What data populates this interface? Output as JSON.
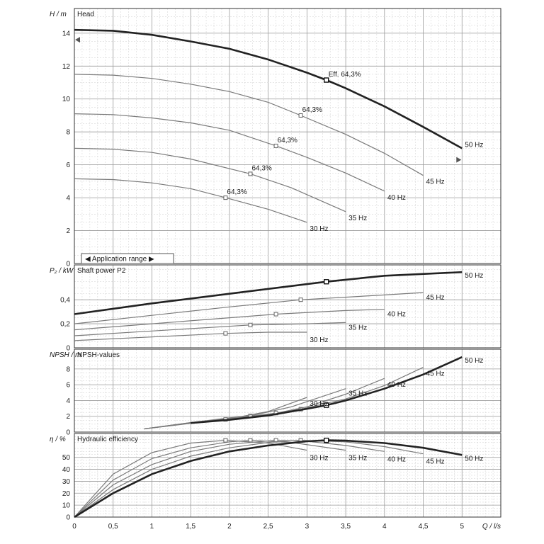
{
  "chart_data": {
    "type": "line",
    "x_axis": {
      "label": "Q / l/s",
      "range": [
        0,
        5.5
      ],
      "ticks": [
        0,
        0.5,
        1,
        1.5,
        2,
        2.5,
        3,
        3.5,
        4,
        4.5,
        5
      ],
      "tick_labels": [
        "0",
        "0,5",
        "1",
        "1,5",
        "2",
        "2,5",
        "3",
        "3,5",
        "4",
        "4,5",
        "5"
      ]
    },
    "application_range_label": "◀ Application range ▶",
    "panels": [
      {
        "id": "head",
        "title": "Head",
        "ylabel": "H / m",
        "ylim": [
          0,
          15.5
        ],
        "yticks": [
          0,
          2,
          4,
          6,
          8,
          10,
          12,
          14
        ],
        "ytick_labels": [
          "0",
          "2",
          "4",
          "6",
          "8",
          "10",
          "12",
          "14"
        ],
        "annotation": "Eff.  64,3%",
        "series": [
          {
            "name": "50 Hz",
            "bold": true,
            "x": [
              0,
              0.5,
              1,
              1.5,
              2,
              2.5,
              3,
              3.25,
              3.5,
              4,
              4.5,
              5.0
            ],
            "y": [
              14.2,
              14.15,
              13.9,
              13.5,
              13.05,
              12.4,
              11.6,
              11.15,
              10.65,
              9.55,
              8.3,
              7.0
            ],
            "op_point": [
              3.25,
              11.15
            ]
          },
          {
            "name": "45 Hz",
            "bold": false,
            "x": [
              0,
              0.5,
              1,
              1.5,
              2,
              2.5,
              2.92,
              3.5,
              4,
              4.5
            ],
            "y": [
              11.5,
              11.45,
              11.25,
              10.9,
              10.45,
              9.8,
              9.0,
              7.85,
              6.7,
              5.35
            ],
            "op_point": [
              2.92,
              9.0
            ],
            "point_label": "64,3%"
          },
          {
            "name": "40 Hz",
            "bold": false,
            "x": [
              0,
              0.5,
              1,
              1.5,
              2,
              2.6,
              3,
              3.5,
              4
            ],
            "y": [
              9.1,
              9.05,
              8.85,
              8.55,
              8.1,
              7.15,
              6.45,
              5.5,
              4.4
            ],
            "op_point": [
              2.6,
              7.15
            ],
            "point_label": "64,3%"
          },
          {
            "name": "35 Hz",
            "bold": false,
            "x": [
              0,
              0.5,
              1,
              1.5,
              2.27,
              2.8,
              3.5
            ],
            "y": [
              7.0,
              6.95,
              6.75,
              6.35,
              5.45,
              4.6,
              3.15
            ],
            "op_point": [
              2.27,
              5.45
            ],
            "point_label": "64,3%"
          },
          {
            "name": "30 Hz",
            "bold": false,
            "x": [
              0,
              0.5,
              1,
              1.5,
              1.95,
              2.5,
              3.0
            ],
            "y": [
              5.15,
              5.1,
              4.9,
              4.55,
              4.0,
              3.3,
              2.5
            ],
            "op_point": [
              1.95,
              4.0
            ],
            "point_label": "64,3%"
          }
        ]
      },
      {
        "id": "power",
        "title": "Shaft power P2",
        "ylabel": "P₂ / kW",
        "ylim": [
          0,
          0.69
        ],
        "yticks": [
          0,
          0.2,
          0.4
        ],
        "ytick_labels": [
          "0",
          "0,2",
          "0,4"
        ],
        "series": [
          {
            "name": "50 Hz",
            "bold": true,
            "x": [
              0,
              1,
              2,
              3.25,
              4,
              5.0
            ],
            "y": [
              0.28,
              0.37,
              0.45,
              0.55,
              0.6,
              0.63
            ],
            "op_point": [
              3.25,
              0.55
            ]
          },
          {
            "name": "45 Hz",
            "bold": false,
            "x": [
              0,
              1,
              2,
              2.92,
              4,
              4.5
            ],
            "y": [
              0.2,
              0.27,
              0.34,
              0.4,
              0.44,
              0.46
            ],
            "op_point": [
              2.92,
              0.4
            ]
          },
          {
            "name": "40 Hz",
            "bold": false,
            "x": [
              0,
              1,
              2,
              2.6,
              3.5,
              4.0
            ],
            "y": [
              0.15,
              0.2,
              0.25,
              0.28,
              0.31,
              0.32
            ],
            "op_point": [
              2.6,
              0.28
            ]
          },
          {
            "name": "35 Hz",
            "bold": false,
            "x": [
              0,
              1,
              2.27,
              3,
              3.5
            ],
            "y": [
              0.1,
              0.14,
              0.19,
              0.2,
              0.21
            ],
            "op_point": [
              2.27,
              0.19
            ]
          },
          {
            "name": "30 Hz",
            "bold": false,
            "x": [
              0,
              1,
              1.95,
              2.5,
              3.0
            ],
            "y": [
              0.06,
              0.09,
              0.12,
              0.13,
              0.13
            ],
            "op_point": [
              1.95,
              0.12
            ]
          }
        ]
      },
      {
        "id": "npsh",
        "title": "NPSH-values",
        "ylabel": "NPSH / m",
        "ylim": [
          0,
          10.5
        ],
        "yticks": [
          0,
          2,
          4,
          6,
          8
        ],
        "ytick_labels": [
          "0",
          "2",
          "4",
          "6",
          "8"
        ],
        "series": [
          {
            "name": "50 Hz",
            "bold": true,
            "x": [
              1.5,
              2,
              2.5,
              3,
              3.25,
              3.5,
              4,
              4.5,
              5.0
            ],
            "y": [
              1.15,
              1.55,
              2.1,
              2.95,
              3.4,
              4.0,
              5.5,
              7.3,
              9.5
            ],
            "op_point": [
              3.25,
              3.4
            ]
          },
          {
            "name": "45 Hz",
            "bold": false,
            "x": [
              0.9,
              1.5,
              2,
              2.5,
              2.92,
              3.5,
              4,
              4.5
            ],
            "y": [
              0.4,
              1.1,
              1.6,
              2.25,
              2.9,
              4.2,
              5.9,
              8.2
            ],
            "op_point": [
              2.92,
              2.9
            ]
          },
          {
            "name": "40 Hz",
            "bold": false,
            "x": [
              0.9,
              1.5,
              2,
              2.6,
              3,
              3.5,
              4.0
            ],
            "y": [
              0.4,
              1.15,
              1.7,
              2.4,
              3.2,
              4.8,
              6.8
            ],
            "op_point": [
              2.6,
              2.4
            ]
          },
          {
            "name": "35 Hz",
            "bold": false,
            "x": [
              0.9,
              1.5,
              2,
              2.27,
              2.8,
              3.5
            ],
            "y": [
              0.4,
              1.2,
              1.8,
              2.05,
              3.2,
              5.5
            ],
            "op_point": [
              2.27,
              2.05
            ]
          },
          {
            "name": "30 Hz",
            "bold": false,
            "x": [
              0.9,
              1.5,
              1.95,
              2.5,
              3.0
            ],
            "y": [
              0.4,
              1.2,
              1.6,
              2.6,
              4.4
            ],
            "op_point": [
              1.95,
              1.6
            ]
          }
        ]
      },
      {
        "id": "efficiency",
        "title": "Hydraulic efficiency",
        "ylabel": "η / %",
        "ylim": [
          0,
          70
        ],
        "yticks": [
          0,
          10,
          20,
          30,
          40,
          50
        ],
        "ytick_labels": [
          "0",
          "10",
          "20",
          "30",
          "40",
          "50"
        ],
        "series": [
          {
            "name": "50 Hz",
            "bold": true,
            "x": [
              0,
              0.5,
              1,
              1.5,
              2,
              2.5,
              3,
              3.25,
              3.5,
              4,
              4.5,
              5.0
            ],
            "y": [
              0,
              20,
              36,
              47,
              55,
              60,
              63.5,
              64.3,
              64,
              62,
              58,
              52
            ],
            "op_point": [
              3.25,
              64.3
            ]
          },
          {
            "name": "45 Hz",
            "bold": false,
            "x": [
              0,
              0.5,
              1,
              1.5,
              2,
              2.5,
              2.92,
              3.5,
              4,
              4.5
            ],
            "y": [
              0,
              23,
              40,
              51,
              58,
              62.5,
              64.3,
              63,
              59,
              53
            ],
            "op_point": [
              2.92,
              64.3
            ]
          },
          {
            "name": "40 Hz",
            "bold": false,
            "x": [
              0,
              0.5,
              1,
              1.5,
              2,
              2.6,
              3,
              3.5,
              4.0
            ],
            "y": [
              0,
              27,
              44,
              55,
              61,
              64.3,
              63.5,
              60,
              55
            ],
            "op_point": [
              2.6,
              64.3
            ]
          },
          {
            "name": "35 Hz",
            "bold": false,
            "x": [
              0,
              0.5,
              1,
              1.5,
              2,
              2.27,
              2.8,
              3.5
            ],
            "y": [
              0,
              31,
              49,
              58,
              63,
              64.3,
              62.5,
              56
            ],
            "op_point": [
              2.27,
              64.3
            ]
          },
          {
            "name": "30 Hz",
            "bold": false,
            "x": [
              0,
              0.5,
              1,
              1.5,
              1.95,
              2.5,
              3.0
            ],
            "y": [
              0,
              36,
              54,
              62,
              64.3,
              62,
              56
            ],
            "op_point": [
              1.95,
              64.3
            ]
          }
        ]
      }
    ]
  }
}
